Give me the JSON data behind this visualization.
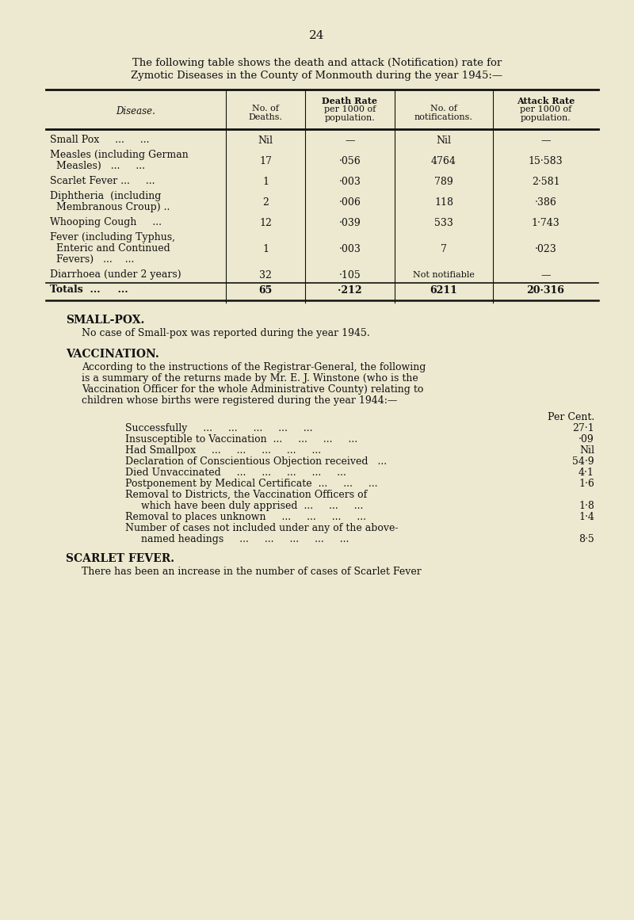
{
  "bg_color": "#ede9d0",
  "text_color": "#111111",
  "page_number": "24",
  "intro_line1": "The following table shows the death and attack (Notification) rate for",
  "intro_line2": "Zymotic Diseases in the County of Monmouth during the year 1945:—",
  "table_headers_line1": [
    "",
    "No. of",
    "Death Rate",
    "No. of",
    "Attack Rate"
  ],
  "table_headers_line2": [
    "Disease.",
    "Deaths.",
    "per 1000 of",
    "notifications.",
    "per 1000 of"
  ],
  "table_headers_line3": [
    "",
    "",
    "population.",
    "",
    "population."
  ],
  "table_rows": [
    [
      "Small Pox     ...     ...",
      "Nil",
      "—",
      "Nil",
      "—"
    ],
    [
      "Measles (including German\n  Measles)   ...     ...",
      "17",
      "·056",
      "4764",
      "15·583"
    ],
    [
      "Scarlet Fever ...     ...",
      "1",
      "·003",
      "789",
      "2·581"
    ],
    [
      "Diphtheria  (including\n  Membranous Croup) ..",
      "2",
      "·006",
      "118",
      "·386"
    ],
    [
      "Whooping Cough     ...",
      "12",
      "·039",
      "533",
      "1·743"
    ],
    [
      "Fever (including Typhus,\n  Enteric and Continued\n  Fevers)   ...    ...",
      "1",
      "·003",
      "7",
      "·023"
    ],
    [
      "Diarrhoea (under 2 years)",
      "32",
      "·105",
      "Not notifiable",
      "—"
    ],
    [
      "Totals  ...     ...",
      "65",
      "·212",
      "6211",
      "20·316"
    ]
  ],
  "smallpox_heading": "SMALL-POX.",
  "smallpox_text": "No case of Small-pox was reported during the year 1945.",
  "vaccination_heading": "VACCINATION.",
  "vaccination_para": [
    "According to the instructions of the Registrar-General, the following",
    "is a summary of the returns made by Mr. E. J. Winstone (who is the",
    "Vaccination Officer for the whole Administrative County) relating to",
    "children whose births were registered during the year 1944:—"
  ],
  "per_cent_label": "Per Cent.",
  "vaccination_items": [
    [
      "Successfully     ...     ...     ...     ...     ...",
      "27·1"
    ],
    [
      "Insusceptible to Vaccination  ...     ...     ...     ...",
      "·09"
    ],
    [
      "Had Smallpox     ...     ...     ...     ...     ...",
      "Nil"
    ],
    [
      "Declaration of Conscientious Objection received   ...",
      "54·9"
    ],
    [
      "Died Unvaccinated     ...     ...     ...     ...     ...",
      "4·1"
    ],
    [
      "Postponement by Medical Certificate  ...     ...     ...",
      "1·6"
    ],
    [
      "Removal to Districts, the Vaccination Officers of",
      ""
    ],
    [
      "     which have been duly apprised  ...     ...     ...",
      "1·8"
    ],
    [
      "Removal to places unknown     ...     ...     ...     ...",
      "1·4"
    ],
    [
      "Number of cases not included under any of the above-",
      ""
    ],
    [
      "     named headings     ...     ...     ...     ...     ...",
      "8·5"
    ]
  ],
  "scarlet_heading": "SCARLET FEVER.",
  "scarlet_text": "There has been an increase in the number of cases of Scarlet Fever"
}
